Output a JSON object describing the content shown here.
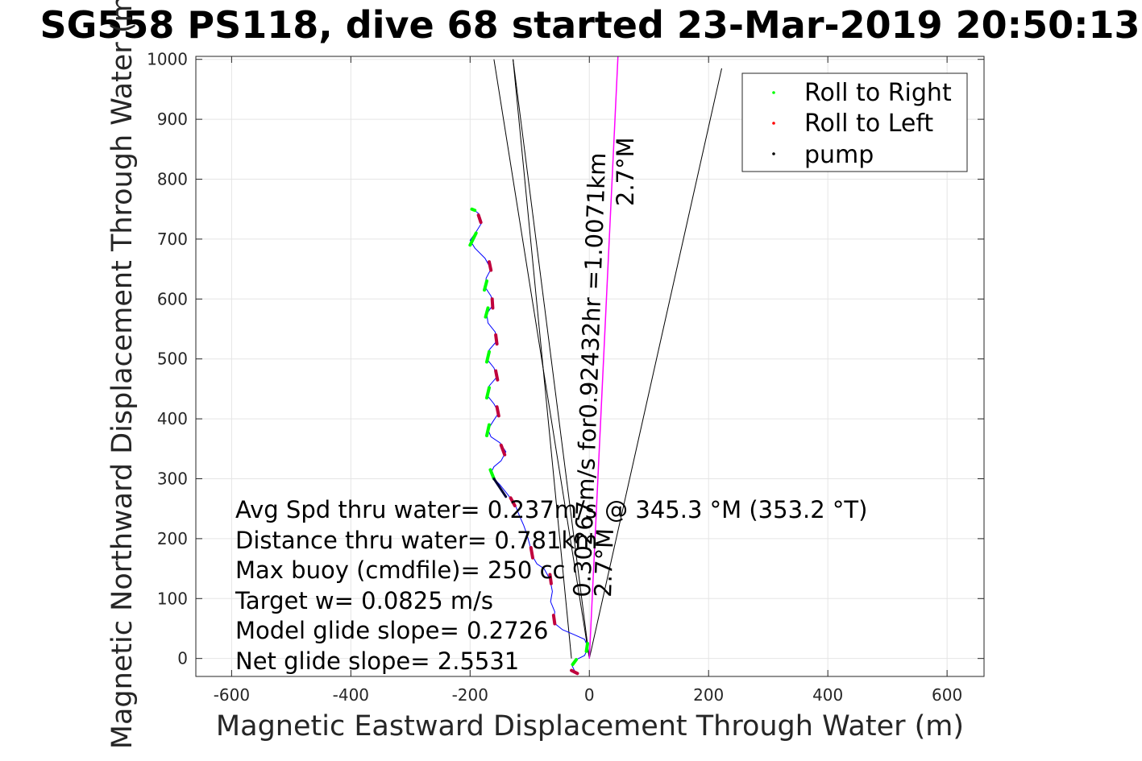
{
  "chart_data": {
    "type": "line",
    "title": "SG558 PS118, dive 68 started 23-Mar-2019 20:50:13",
    "xlabel": "Magnetic Eastward Displacement Through Water (m)",
    "ylabel": "Magnetic Northward Displacement Through Water (m)",
    "xlim": [
      -660,
      662
    ],
    "ylim": [
      -30,
      1005
    ],
    "xticks": [
      -600,
      -400,
      -200,
      0,
      200,
      400,
      600
    ],
    "yticks": [
      0,
      100,
      200,
      300,
      400,
      500,
      600,
      700,
      800,
      900,
      1000
    ],
    "grid": true,
    "legend": {
      "placement": "top-right",
      "entries": [
        {
          "label": "Roll to Right",
          "color": "#00ff00"
        },
        {
          "label": "Roll to Left",
          "color": "#ff0000"
        },
        {
          "label": "pump",
          "color": "#000000"
        }
      ]
    },
    "track": {
      "color": "#0000ff",
      "points": [
        [
          -25,
          -20
        ],
        [
          -30,
          -10
        ],
        [
          -22,
          -2
        ],
        [
          -8,
          5
        ],
        [
          -2,
          18
        ],
        [
          -8,
          32
        ],
        [
          -26,
          40
        ],
        [
          -45,
          48
        ],
        [
          -60,
          60
        ],
        [
          -58,
          78
        ],
        [
          -65,
          95
        ],
        [
          -62,
          112
        ],
        [
          -66,
          132
        ],
        [
          -76,
          150
        ],
        [
          -88,
          158
        ],
        [
          -96,
          172
        ],
        [
          -100,
          190
        ],
        [
          -105,
          208
        ],
        [
          -110,
          222
        ],
        [
          -118,
          240
        ],
        [
          -125,
          258
        ],
        [
          -138,
          275
        ],
        [
          -150,
          290
        ],
        [
          -160,
          300
        ],
        [
          -165,
          310
        ],
        [
          -160,
          320
        ],
        [
          -148,
          330
        ],
        [
          -140,
          345
        ],
        [
          -150,
          360
        ],
        [
          -165,
          370
        ],
        [
          -170,
          382
        ],
        [
          -162,
          395
        ],
        [
          -152,
          410
        ],
        [
          -160,
          425
        ],
        [
          -172,
          440
        ],
        [
          -168,
          455
        ],
        [
          -155,
          470
        ],
        [
          -160,
          485
        ],
        [
          -172,
          500
        ],
        [
          -168,
          515
        ],
        [
          -155,
          530
        ],
        [
          -158,
          545
        ],
        [
          -170,
          560
        ],
        [
          -172,
          575
        ],
        [
          -162,
          590
        ],
        [
          -165,
          605
        ],
        [
          -175,
          620
        ],
        [
          -173,
          635
        ],
        [
          -165,
          650
        ],
        [
          -175,
          668
        ],
        [
          -192,
          685
        ],
        [
          -200,
          698
        ],
        [
          -190,
          712
        ],
        [
          -180,
          728
        ],
        [
          -185,
          742
        ],
        [
          -195,
          750
        ]
      ],
      "roll_right_segments": [
        [
          [
            -28,
            -10
          ],
          [
            -22,
            -2
          ]
        ],
        [
          [
            -5,
            12
          ],
          [
            -3,
            25
          ]
        ],
        [
          [
            -172,
            372
          ],
          [
            -168,
            390
          ]
        ],
        [
          [
            -172,
            435
          ],
          [
            -168,
            452
          ]
        ],
        [
          [
            -172,
            495
          ],
          [
            -168,
            512
          ]
        ],
        [
          [
            -174,
            570
          ],
          [
            -170,
            585
          ]
        ],
        [
          [
            -176,
            615
          ],
          [
            -172,
            630
          ]
        ],
        [
          [
            -200,
            690
          ],
          [
            -190,
            710
          ]
        ],
        [
          [
            -160,
            300
          ],
          [
            -166,
            315
          ]
        ],
        [
          [
            -197,
            750
          ],
          [
            -192,
            748
          ]
        ]
      ],
      "roll_left_segments": [
        [
          [
            -30,
            -20
          ],
          [
            -20,
            -25
          ]
        ],
        [
          [
            -58,
            58
          ],
          [
            -60,
            72
          ]
        ],
        [
          [
            -64,
            125
          ],
          [
            -66,
            140
          ]
        ],
        [
          [
            -95,
            168
          ],
          [
            -98,
            185
          ]
        ],
        [
          [
            -125,
            255
          ],
          [
            -132,
            268
          ]
        ],
        [
          [
            -142,
            340
          ],
          [
            -148,
            356
          ]
        ],
        [
          [
            -152,
            405
          ],
          [
            -155,
            420
          ]
        ],
        [
          [
            -154,
            465
          ],
          [
            -157,
            480
          ]
        ],
        [
          [
            -155,
            525
          ],
          [
            -157,
            540
          ]
        ],
        [
          [
            -162,
            585
          ],
          [
            -163,
            600
          ]
        ],
        [
          [
            -165,
            648
          ],
          [
            -168,
            662
          ]
        ],
        [
          [
            -182,
            728
          ],
          [
            -186,
            740
          ]
        ]
      ],
      "pump_segments": [
        [
          [
            -160,
            300
          ],
          [
            -140,
            270
          ]
        ]
      ]
    },
    "reference_lines": {
      "current_line": {
        "from": [
          0,
          0
        ],
        "to": [
          48,
          1005
        ],
        "color": "#ff00ff"
      },
      "cone_lines": [
        {
          "from": [
            0,
            0
          ],
          "to": [
            -128,
            1000
          ]
        },
        {
          "from": [
            0,
            0
          ],
          "to": [
            222,
            985
          ]
        },
        {
          "from": [
            -30,
            0
          ],
          "to": [
            -128,
            1000
          ]
        },
        {
          "from": [
            0,
            0
          ],
          "to": [
            -160,
            1000
          ]
        }
      ]
    },
    "annotations": {
      "stats": [
        "Avg Spd thru water=  0.237m/s @ 345.3 °M (353.2 °T)",
        "Distance thru water=  0.781km",
        "Max buoy (cmdfile)= 250 cc",
        "Target w= 0.0825 m/s",
        "Model glide slope= 0.2726",
        "Net glide slope= 2.5531"
      ],
      "current_label": "0.30267m/s for0.92432hr =1.0071km",
      "current_heading": "2.7°M",
      "heading_label_top": "2.7°M"
    }
  }
}
